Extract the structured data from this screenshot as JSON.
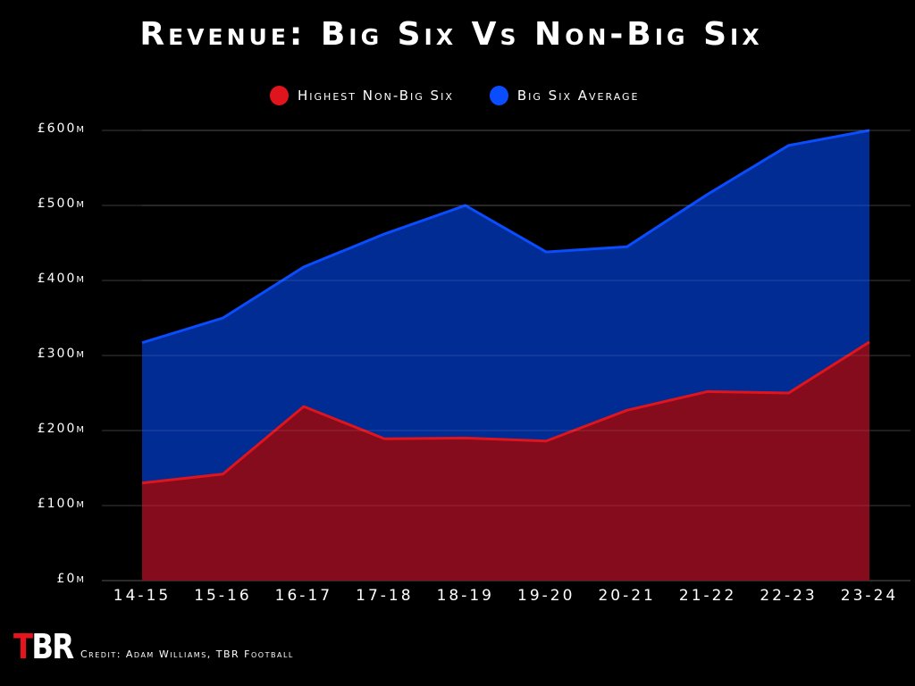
{
  "title": "Revenue: Big Six Vs Non-Big Six",
  "legend": [
    {
      "label": "Highest Non-Big Six",
      "color": "#e0141c"
    },
    {
      "label": "Big Six Average",
      "color": "#0a4dff"
    }
  ],
  "y_ticks": [
    "£600m",
    "£500m",
    "£400m",
    "£300m",
    "£200m",
    "£100m",
    "£0m"
  ],
  "x_ticks": [
    "14-15",
    "15-16",
    "16-17",
    "17-18",
    "18-19",
    "19-20",
    "20-21",
    "21-22",
    "22-23",
    "23-24"
  ],
  "credit": "Credit: Adam Williams, TBR Football",
  "logo": {
    "t": "T",
    "br": "BR"
  },
  "colors": {
    "big_six_fill": "#0030a0",
    "big_six_line": "#0a4dff",
    "non_big_six_fill": "#900a12",
    "non_big_six_line": "#e0141c",
    "grid": "#3a3a3a",
    "background": "#000000"
  },
  "chart_data": {
    "type": "area",
    "title": "Revenue: Big Six Vs Non-Big Six",
    "xlabel": "",
    "ylabel": "",
    "categories": [
      "14-15",
      "15-16",
      "16-17",
      "17-18",
      "18-19",
      "19-20",
      "20-21",
      "21-22",
      "22-23",
      "23-24"
    ],
    "series": [
      {
        "name": "Big Six Average",
        "color": "#0a4dff",
        "values": [
          317,
          350,
          418,
          462,
          500,
          438,
          445,
          515,
          580,
          600
        ]
      },
      {
        "name": "Highest Non-Big Six",
        "color": "#e0141c",
        "values": [
          130,
          142,
          232,
          189,
          190,
          186,
          227,
          252,
          250,
          318
        ]
      }
    ],
    "units": "£m",
    "ylim": [
      0,
      600
    ],
    "y_tick_step": 100,
    "grid": true,
    "legend_position": "top"
  }
}
